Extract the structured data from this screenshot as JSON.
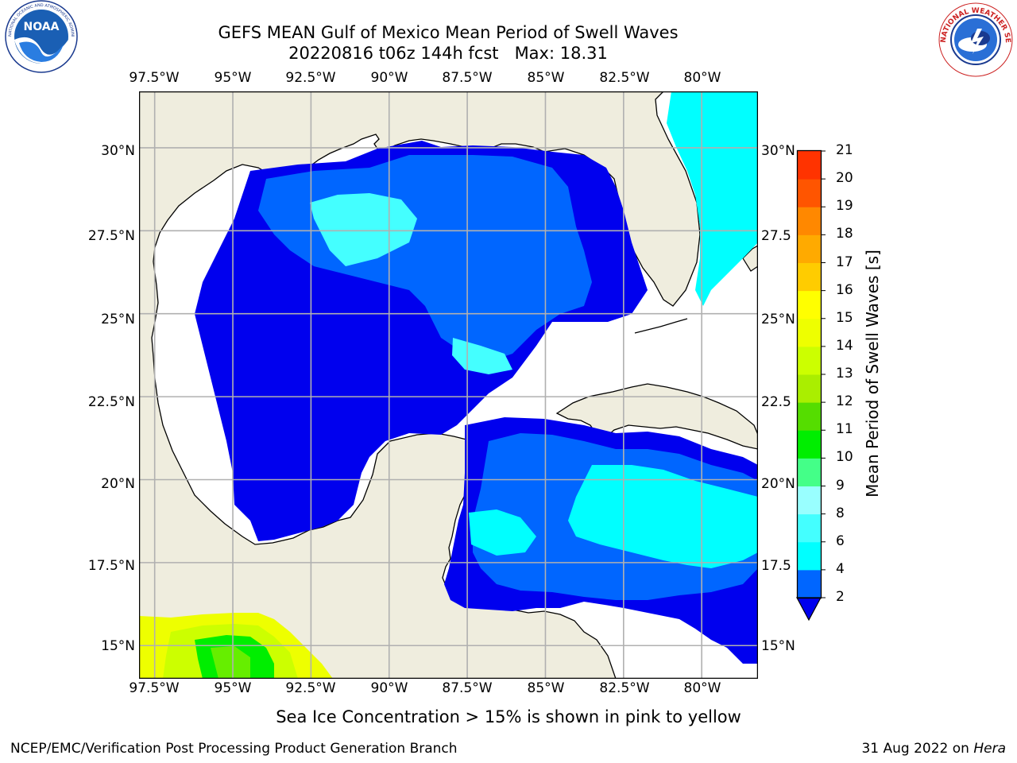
{
  "header": {
    "title_line1": "GEFS MEAN Gulf of Mexico Mean Period of Swell Waves",
    "title_line2": "20220816 t06z 144h fcst   Max: 18.31"
  },
  "logos": {
    "noaa_text": "NOAA",
    "noaa_ring_text": "NATIONAL OCEANIC AND ATMOSPHERIC ADMINISTRATION · U.S. DEPARTMENT OF COMMERCE",
    "nws_ring_text": "NATIONAL WEATHER SERVICE"
  },
  "map": {
    "extent_lon": [
      -98.0,
      -78.2
    ],
    "extent_lat": [
      14.0,
      31.7
    ],
    "ocean_color": "#ffffff",
    "land_color": "#efedde",
    "grid_color": "#b0b0b0",
    "lon_labels": [
      "97.5°W",
      "95°W",
      "92.5°W",
      "90°W",
      "87.5°W",
      "85°W",
      "82.5°W",
      "80°W"
    ],
    "lat_labels_left": [
      "30°N",
      "27.5°N",
      "25°N",
      "22.5°N",
      "20°N",
      "17.5°N",
      "15°N"
    ],
    "lat_labels_right": [
      "30°N",
      "27.5",
      "25°N",
      "22.5",
      "20°N",
      "17.5",
      "15°N"
    ]
  },
  "colorbar": {
    "title": "Mean Period of Swell Waves [s]",
    "ticks": [
      "2",
      "4",
      "6",
      "8",
      "9",
      "10",
      "11",
      "12",
      "13",
      "14",
      "15",
      "16",
      "17",
      "18",
      "19",
      "20",
      "21"
    ],
    "colors": [
      "#0066ff",
      "#0000ee",
      "#00ccff",
      "#00ffff",
      "#44ffee",
      "#99ffff",
      "#44ff88",
      "#00ee00",
      "#66ee00",
      "#99ff00",
      "#ccff00",
      "#eeff00",
      "#ffff00",
      "#ffee00",
      "#ffcc00",
      "#ff9900",
      "#ff7700",
      "#ff5500",
      "#ff3300",
      "#ff0000"
    ],
    "band_colors": [
      "#0066ff",
      "#00ffff",
      "#44ffff",
      "#99ffff",
      "#44ff88",
      "#00ee00",
      "#55dd00",
      "#aaee00",
      "#ccff00",
      "#eeff00",
      "#ffff00",
      "#ffcc00",
      "#ffaa00",
      "#ff8800",
      "#ff5500",
      "#ff3300",
      "#ff0000"
    ]
  },
  "footer": {
    "note": "Sea Ice Concentration > 15% is shown in pink to yellow",
    "credit": "NCEP/EMC/Verification Post Processing Product Generation Branch",
    "date": "31 Aug 2022 on ",
    "host": "Hera"
  }
}
